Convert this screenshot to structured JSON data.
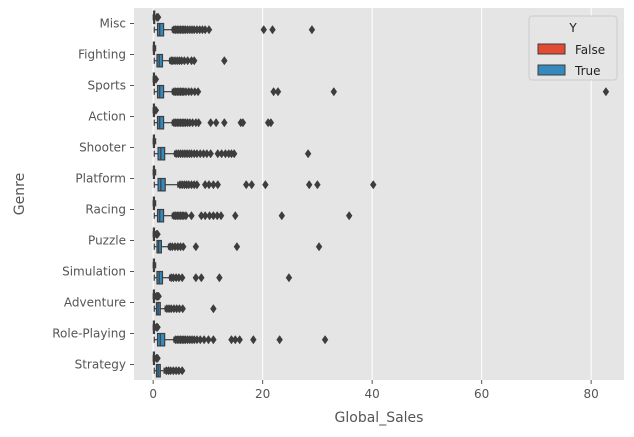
{
  "chart_data": {
    "type": "boxplot",
    "orientation": "horizontal",
    "xlabel": "Global_Sales",
    "ylabel": "Genre",
    "xlim": [
      -3.5,
      86
    ],
    "xticks": [
      0,
      20,
      40,
      60,
      80
    ],
    "grid": true,
    "legend": {
      "title": "Y",
      "placement": "top-right",
      "entries": [
        {
          "label": "False",
          "color": "#e24a33"
        },
        {
          "label": "True",
          "color": "#348abd"
        }
      ]
    },
    "categories": [
      "Misc",
      "Fighting",
      "Sports",
      "Action",
      "Shooter",
      "Platform",
      "Racing",
      "Puzzle",
      "Simulation",
      "Adventure",
      "Role-Playing",
      "Strategy"
    ],
    "series": [
      {
        "name": "False",
        "color": "#e24a33",
        "boxes": [
          {
            "q1": 0.1,
            "med": 0.15,
            "q3": 0.25,
            "lo": 0.01,
            "hi": 0.6,
            "outliers": [
              0.7,
              0.9
            ]
          },
          {
            "q1": 0.05,
            "med": 0.1,
            "q3": 0.2,
            "lo": 0.01,
            "hi": 0.45,
            "outliers": []
          },
          {
            "q1": 0.05,
            "med": 0.1,
            "q3": 0.2,
            "lo": 0.01,
            "hi": 0.45,
            "outliers": [
              0.5
            ]
          },
          {
            "q1": 0.05,
            "med": 0.1,
            "q3": 0.2,
            "lo": 0.01,
            "hi": 0.45,
            "outliers": [
              0.5
            ]
          },
          {
            "q1": 0.05,
            "med": 0.1,
            "q3": 0.2,
            "lo": 0.01,
            "hi": 0.45,
            "outliers": []
          },
          {
            "q1": 0.05,
            "med": 0.1,
            "q3": 0.2,
            "lo": 0.01,
            "hi": 0.45,
            "outliers": []
          },
          {
            "q1": 0.05,
            "med": 0.1,
            "q3": 0.2,
            "lo": 0.01,
            "hi": 0.45,
            "outliers": []
          },
          {
            "q1": 0.05,
            "med": 0.1,
            "q3": 0.2,
            "lo": 0.01,
            "hi": 0.45,
            "outliers": [
              0.6,
              0.8
            ]
          },
          {
            "q1": 0.05,
            "med": 0.1,
            "q3": 0.2,
            "lo": 0.01,
            "hi": 0.45,
            "outliers": []
          },
          {
            "q1": 0.05,
            "med": 0.1,
            "q3": 0.2,
            "lo": 0.01,
            "hi": 0.45,
            "outliers": [
              0.6,
              0.8,
              1.0
            ]
          },
          {
            "q1": 0.05,
            "med": 0.1,
            "q3": 0.2,
            "lo": 0.01,
            "hi": 0.45,
            "outliers": [
              0.6,
              0.8
            ]
          },
          {
            "q1": 0.05,
            "med": 0.1,
            "q3": 0.2,
            "lo": 0.01,
            "hi": 0.45,
            "outliers": [
              0.6,
              0.8
            ]
          }
        ]
      },
      {
        "name": "True",
        "color": "#348abd",
        "boxes": [
          {
            "q1": 0.8,
            "med": 1.2,
            "q3": 1.9,
            "lo": 0.2,
            "hi": 3.5,
            "outliers": [
              3.8,
              4.1,
              4.4,
              4.7,
              5.0,
              5.3,
              5.6,
              5.9,
              6.3,
              6.7,
              7.1,
              7.5,
              8.0,
              8.5,
              9.0,
              9.5,
              10.2,
              20.2,
              21.8,
              29.0
            ]
          },
          {
            "q1": 0.7,
            "med": 1.1,
            "q3": 1.7,
            "lo": 0.2,
            "hi": 3.0,
            "outliers": [
              3.3,
              3.6,
              4.0,
              4.4,
              4.8,
              5.2,
              5.7,
              6.3,
              7.0,
              7.5,
              13.0
            ]
          },
          {
            "q1": 0.8,
            "med": 1.2,
            "q3": 1.9,
            "lo": 0.2,
            "hi": 3.5,
            "outliers": [
              3.8,
              4.1,
              4.4,
              4.7,
              5.0,
              5.3,
              5.6,
              6.0,
              6.5,
              7.0,
              7.6,
              8.2,
              22.0,
              22.8,
              33.0,
              82.7
            ]
          },
          {
            "q1": 0.8,
            "med": 1.2,
            "q3": 1.9,
            "lo": 0.2,
            "hi": 3.5,
            "outliers": [
              3.8,
              4.1,
              4.4,
              4.7,
              5.0,
              5.3,
              5.6,
              5.9,
              6.3,
              6.7,
              7.2,
              7.8,
              8.3,
              10.5,
              11.5,
              13.0,
              16.0,
              16.4,
              21.0,
              21.5
            ]
          },
          {
            "q1": 0.9,
            "med": 1.4,
            "q3": 2.1,
            "lo": 0.2,
            "hi": 3.9,
            "outliers": [
              4.2,
              4.6,
              5.0,
              5.4,
              5.8,
              6.2,
              6.6,
              7.0,
              7.5,
              8.0,
              8.6,
              9.2,
              9.8,
              10.5,
              11.8,
              12.5,
              13.2,
              13.8,
              14.3,
              14.8,
              28.3
            ]
          },
          {
            "q1": 0.9,
            "med": 1.4,
            "q3": 2.2,
            "lo": 0.2,
            "hi": 4.5,
            "outliers": [
              4.9,
              5.3,
              5.7,
              6.1,
              6.5,
              7.0,
              7.5,
              8.0,
              9.5,
              10.2,
              11.0,
              11.8,
              17.0,
              18.0,
              20.5,
              28.5,
              30.0,
              40.2
            ]
          },
          {
            "q1": 0.8,
            "med": 1.2,
            "q3": 1.9,
            "lo": 0.2,
            "hi": 3.5,
            "outliers": [
              3.8,
              4.1,
              4.4,
              4.7,
              5.0,
              5.3,
              5.6,
              6.0,
              7.0,
              8.8,
              9.5,
              10.3,
              11.0,
              11.7,
              12.4,
              15.0,
              23.5,
              35.8
            ]
          },
          {
            "q1": 0.7,
            "med": 1.0,
            "q3": 1.5,
            "lo": 0.2,
            "hi": 2.8,
            "outliers": [
              3.1,
              3.5,
              4.0,
              4.5,
              5.0,
              5.5,
              7.8,
              15.3,
              30.3
            ]
          },
          {
            "q1": 0.7,
            "med": 1.1,
            "q3": 1.7,
            "lo": 0.2,
            "hi": 3.0,
            "outliers": [
              3.3,
              3.7,
              4.2,
              4.7,
              5.3,
              7.8,
              8.8,
              12.1,
              24.8
            ]
          },
          {
            "q1": 0.6,
            "med": 0.9,
            "q3": 1.3,
            "lo": 0.2,
            "hi": 2.2,
            "outliers": [
              2.5,
              2.9,
              3.3,
              3.8,
              4.3,
              4.8,
              5.4,
              11.0
            ]
          },
          {
            "q1": 0.8,
            "med": 1.3,
            "q3": 2.1,
            "lo": 0.2,
            "hi": 3.8,
            "outliers": [
              4.1,
              4.4,
              4.7,
              5.0,
              5.3,
              5.6,
              5.9,
              6.3,
              6.7,
              7.1,
              7.5,
              8.0,
              8.6,
              9.3,
              10.1,
              11.0,
              14.3,
              15.0,
              15.8,
              18.3,
              23.1,
              31.4
            ]
          },
          {
            "q1": 0.6,
            "med": 0.9,
            "q3": 1.3,
            "lo": 0.2,
            "hi": 2.0,
            "outliers": [
              2.4,
              2.8,
              3.2,
              3.7,
              4.2,
              4.7,
              5.3
            ]
          }
        ]
      }
    ]
  }
}
